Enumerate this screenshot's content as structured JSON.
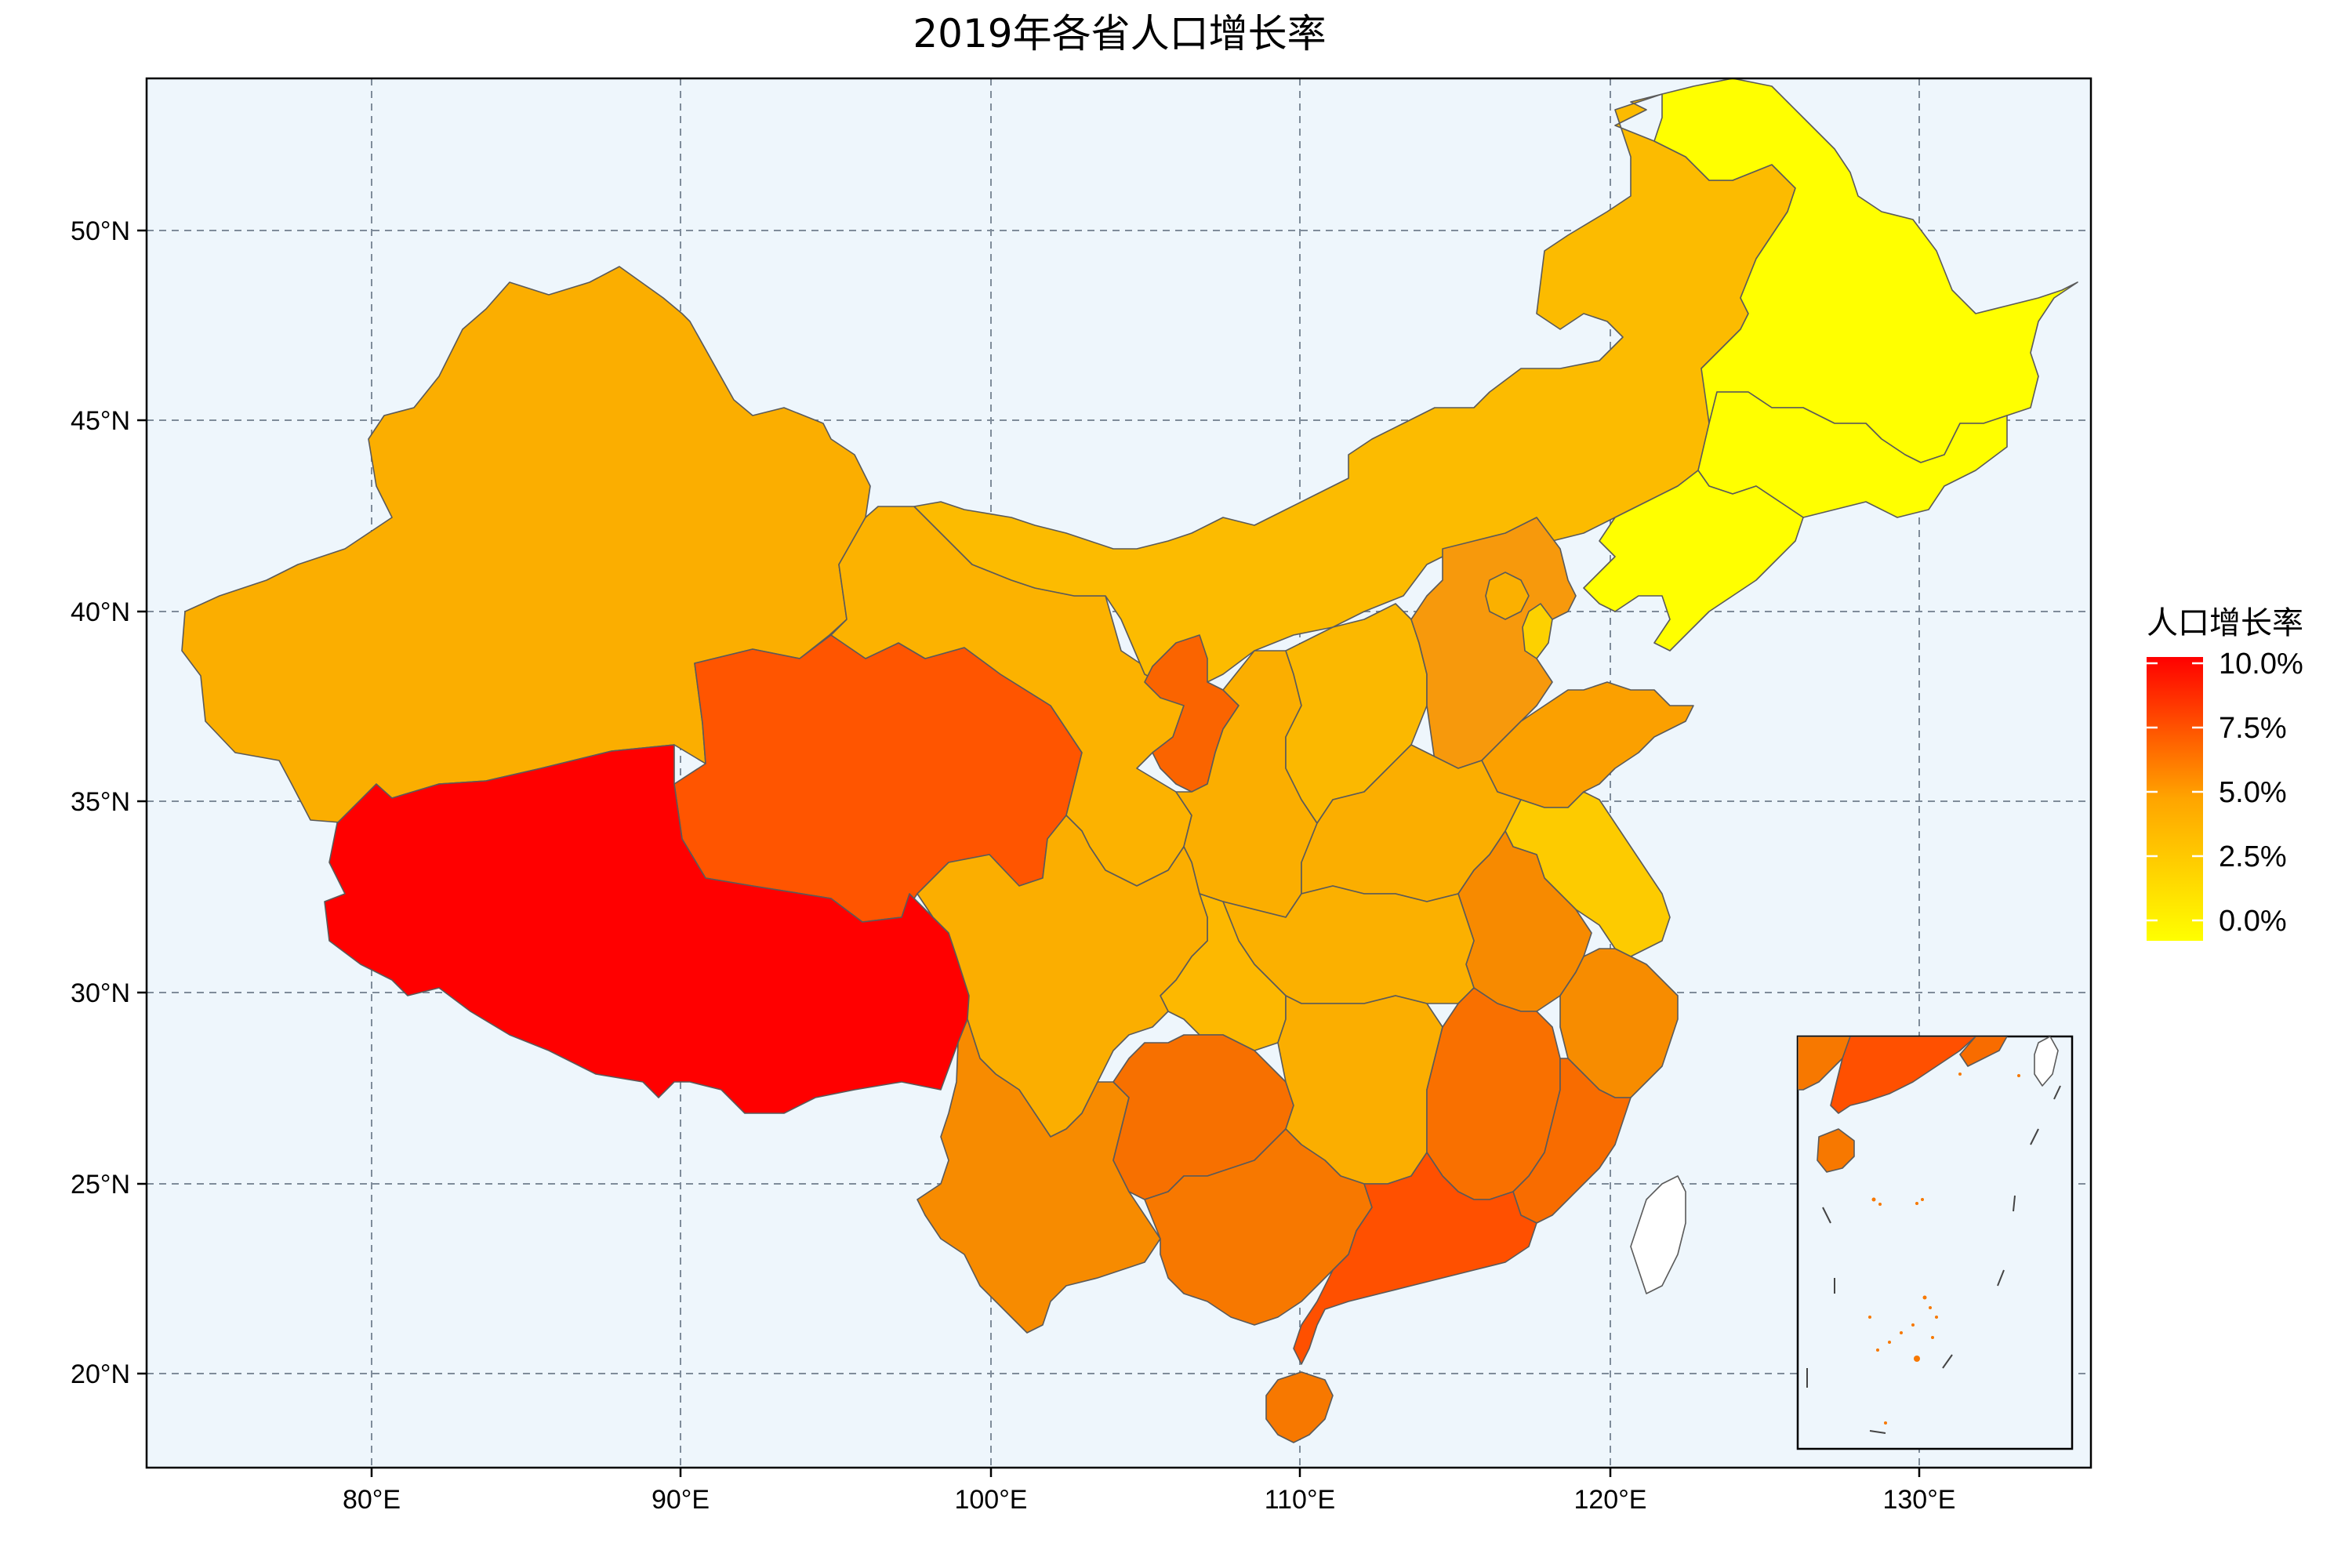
{
  "title": "2019年各省人口增长率",
  "axes": {
    "x_ticks": [
      "80°E",
      "90°E",
      "100°E",
      "110°E",
      "120°E",
      "130°E"
    ],
    "y_ticks": [
      "50°N",
      "45°N",
      "40°N",
      "35°N",
      "30°N",
      "25°N",
      "20°N"
    ]
  },
  "legend": {
    "title": "人口增长率",
    "labels": [
      "10.0%",
      "7.5%",
      "5.0%",
      "2.5%",
      "0.0%"
    ],
    "colors": {
      "low": "#FFFF00",
      "mid": "#FFA500",
      "high": "#FF0000"
    }
  },
  "colors": {
    "ocean": "#EEF6FC",
    "taiwan": "#FFFFFF"
  },
  "provinces": [
    {
      "name": "Xinjiang",
      "rate_percent": 4.2,
      "fill": "#FBAE00"
    },
    {
      "name": "Tibet",
      "rate_percent": 10.0,
      "fill": "#FF0000"
    },
    {
      "name": "Qinghai",
      "rate_percent": 7.5,
      "fill": "#FF5500"
    },
    {
      "name": "Gansu",
      "rate_percent": 3.5,
      "fill": "#FCB200"
    },
    {
      "name": "Inner Mongolia",
      "rate_percent": 3.0,
      "fill": "#FCBB00"
    },
    {
      "name": "Heilongjiang",
      "rate_percent": -0.5,
      "fill": "#FFFF00"
    },
    {
      "name": "Jilin",
      "rate_percent": -0.5,
      "fill": "#FFFF00"
    },
    {
      "name": "Liaoning",
      "rate_percent": -0.5,
      "fill": "#FFFF00"
    },
    {
      "name": "Ningxia",
      "rate_percent": 7.5,
      "fill": "#FA6400"
    },
    {
      "name": "Sichuan",
      "rate_percent": 3.5,
      "fill": "#FBAE00"
    },
    {
      "name": "Yunnan",
      "rate_percent": 6.5,
      "fill": "#F78B00"
    },
    {
      "name": "Guizhou",
      "rate_percent": 7.0,
      "fill": "#F77000"
    },
    {
      "name": "Guangxi",
      "rate_percent": 6.5,
      "fill": "#F77800"
    },
    {
      "name": "Guangdong",
      "rate_percent": 8.5,
      "fill": "#FF5000"
    },
    {
      "name": "Hainan",
      "rate_percent": 6.5,
      "fill": "#F77800"
    },
    {
      "name": "Fujian",
      "rate_percent": 7.0,
      "fill": "#F86C00"
    },
    {
      "name": "Jiangxi",
      "rate_percent": 7.0,
      "fill": "#F97000"
    },
    {
      "name": "Zhejiang",
      "rate_percent": 6.0,
      "fill": "#F78C00"
    },
    {
      "name": "Hunan",
      "rate_percent": 4.0,
      "fill": "#FBAE00"
    },
    {
      "name": "Hubei",
      "rate_percent": 3.5,
      "fill": "#FBB000"
    },
    {
      "name": "Anhui",
      "rate_percent": 6.5,
      "fill": "#F78A00"
    },
    {
      "name": "Jiangsu",
      "rate_percent": 2.5,
      "fill": "#FDCB00"
    },
    {
      "name": "Shandong",
      "rate_percent": 4.5,
      "fill": "#FBA000"
    },
    {
      "name": "Henan",
      "rate_percent": 4.0,
      "fill": "#FBAE00"
    },
    {
      "name": "Hebei",
      "rate_percent": 5.5,
      "fill": "#F7990C"
    },
    {
      "name": "Shanxi",
      "rate_percent": 3.5,
      "fill": "#FBB800"
    },
    {
      "name": "Shaanxi",
      "rate_percent": 4.0,
      "fill": "#FBAE00"
    },
    {
      "name": "Chongqing",
      "rate_percent": 3.0,
      "fill": "#FDB800"
    },
    {
      "name": "Beijing",
      "rate_percent": 3.0,
      "fill": "#FBB000"
    },
    {
      "name": "Tianjin",
      "rate_percent": 2.0,
      "fill": "#FDD100"
    },
    {
      "name": "Taiwan",
      "rate_percent": null,
      "fill": "#FFFFFF"
    },
    {
      "name": "Guangdong (inset)",
      "rate_percent": 8.5,
      "fill": "#FF5000"
    },
    {
      "name": "Guangxi (inset)",
      "rate_percent": 6.5,
      "fill": "#F77800"
    },
    {
      "name": "Hainan (inset)",
      "rate_percent": 6.5,
      "fill": "#F77800"
    },
    {
      "name": "Fujian (inset)",
      "rate_percent": 7.0,
      "fill": "#F86C00"
    },
    {
      "name": "Taiwan (inset)",
      "rate_percent": null,
      "fill": "#FFFFFF"
    }
  ]
}
